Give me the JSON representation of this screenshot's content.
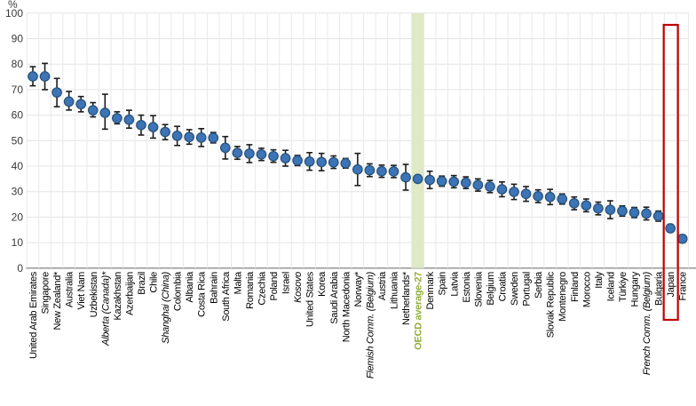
{
  "chart_data": {
    "type": "scatter",
    "title": "",
    "unit": "%",
    "ylim": [
      0,
      100
    ],
    "yticks": [
      0,
      10,
      20,
      30,
      40,
      50,
      60,
      70,
      80,
      90,
      100
    ],
    "grid": true,
    "legend": null,
    "marker": "circle-with-error-bars",
    "points": [
      {
        "label": "United Arab Emirates",
        "value": 75.2,
        "lo": 71.5,
        "hi": 79.0,
        "italic": false
      },
      {
        "label": "Singapore",
        "value": 75.2,
        "lo": 70.0,
        "hi": 80.3,
        "italic": false
      },
      {
        "label": "New Zealand*",
        "value": 68.9,
        "lo": 63.3,
        "hi": 74.4,
        "italic": false
      },
      {
        "label": "Australia",
        "value": 65.3,
        "lo": 62.0,
        "hi": 69.3,
        "italic": false
      },
      {
        "label": "Viet Nam",
        "value": 64.3,
        "lo": 61.3,
        "hi": 67.3,
        "italic": false
      },
      {
        "label": "Uzbekistan",
        "value": 61.9,
        "lo": 59.3,
        "hi": 64.9,
        "italic": false
      },
      {
        "label": "Alberta (Canada)*",
        "value": 60.9,
        "lo": 54.5,
        "hi": 68.2,
        "italic": true
      },
      {
        "label": "Kazakhstan",
        "value": 58.8,
        "lo": 56.6,
        "hi": 61.3,
        "italic": false
      },
      {
        "label": "Azerbaijan",
        "value": 58.2,
        "lo": 54.9,
        "hi": 61.9,
        "italic": false
      },
      {
        "label": "Brazil",
        "value": 56.1,
        "lo": 52.2,
        "hi": 60.0,
        "italic": false
      },
      {
        "label": "Chile",
        "value": 55.3,
        "lo": 51.0,
        "hi": 59.8,
        "italic": false
      },
      {
        "label": "Shanghai (China)",
        "value": 53.4,
        "lo": 50.4,
        "hi": 56.3,
        "italic": true
      },
      {
        "label": "Colombia",
        "value": 51.9,
        "lo": 48.1,
        "hi": 55.6,
        "italic": false
      },
      {
        "label": "Albania",
        "value": 51.4,
        "lo": 48.6,
        "hi": 54.3,
        "italic": false
      },
      {
        "label": "Costa Rica",
        "value": 51.2,
        "lo": 47.7,
        "hi": 54.7,
        "italic": false
      },
      {
        "label": "Bahrain",
        "value": 51.1,
        "lo": 49.1,
        "hi": 53.2,
        "italic": false
      },
      {
        "label": "South Africa",
        "value": 47.2,
        "lo": 42.8,
        "hi": 51.6,
        "italic": false
      },
      {
        "label": "Malta",
        "value": 45.2,
        "lo": 42.7,
        "hi": 47.7,
        "italic": false
      },
      {
        "label": "Romania",
        "value": 44.9,
        "lo": 41.4,
        "hi": 48.4,
        "italic": false
      },
      {
        "label": "Czechia",
        "value": 44.6,
        "lo": 42.2,
        "hi": 47.0,
        "italic": false
      },
      {
        "label": "Poland",
        "value": 43.9,
        "lo": 41.5,
        "hi": 46.4,
        "italic": false
      },
      {
        "label": "Israel",
        "value": 43.1,
        "lo": 40.0,
        "hi": 46.2,
        "italic": false
      },
      {
        "label": "Kosovo",
        "value": 42.2,
        "lo": 40.2,
        "hi": 44.2,
        "italic": true
      },
      {
        "label": "United States",
        "value": 41.8,
        "lo": 38.4,
        "hi": 45.3,
        "italic": false
      },
      {
        "label": "Korea",
        "value": 41.6,
        "lo": 38.2,
        "hi": 45.0,
        "italic": false
      },
      {
        "label": "Saudi Arabia",
        "value": 41.5,
        "lo": 39.1,
        "hi": 44.0,
        "italic": false
      },
      {
        "label": "North Macedonia",
        "value": 41.1,
        "lo": 39.2,
        "hi": 43.0,
        "italic": false
      },
      {
        "label": "Norway*",
        "value": 38.7,
        "lo": 32.4,
        "hi": 45.0,
        "italic": false
      },
      {
        "label": "Flemish Comm. (Belgium)",
        "value": 38.4,
        "lo": 35.9,
        "hi": 40.9,
        "italic": true
      },
      {
        "label": "Austria",
        "value": 38.0,
        "lo": 35.6,
        "hi": 40.4,
        "italic": false
      },
      {
        "label": "Lithuania",
        "value": 37.9,
        "lo": 35.5,
        "hi": 40.3,
        "italic": false
      },
      {
        "label": "Netherlands*",
        "value": 35.6,
        "lo": 30.6,
        "hi": 40.7,
        "italic": false
      },
      {
        "label": "OECD average-27",
        "value": 35.0,
        "lo": 35.0,
        "hi": 35.0,
        "italic": false,
        "oecd": true
      },
      {
        "label": "Denmark",
        "value": 34.6,
        "lo": 31.2,
        "hi": 38.0,
        "italic": false
      },
      {
        "label": "Spain",
        "value": 34.1,
        "lo": 32.1,
        "hi": 36.1,
        "italic": false
      },
      {
        "label": "Latvia",
        "value": 33.9,
        "lo": 31.5,
        "hi": 36.3,
        "italic": false
      },
      {
        "label": "Estonia",
        "value": 33.5,
        "lo": 31.2,
        "hi": 35.8,
        "italic": false
      },
      {
        "label": "Slovenia",
        "value": 32.6,
        "lo": 30.2,
        "hi": 35.0,
        "italic": false
      },
      {
        "label": "Belgium",
        "value": 32.0,
        "lo": 29.6,
        "hi": 34.4,
        "italic": false
      },
      {
        "label": "Croatia",
        "value": 30.9,
        "lo": 28.0,
        "hi": 33.8,
        "italic": false
      },
      {
        "label": "Sweden",
        "value": 29.9,
        "lo": 26.9,
        "hi": 32.9,
        "italic": false
      },
      {
        "label": "Portugal",
        "value": 29.1,
        "lo": 26.2,
        "hi": 32.0,
        "italic": false
      },
      {
        "label": "Serbia",
        "value": 28.2,
        "lo": 25.7,
        "hi": 30.7,
        "italic": false
      },
      {
        "label": "Slovak Republic",
        "value": 27.9,
        "lo": 24.9,
        "hi": 30.9,
        "italic": false
      },
      {
        "label": "Montenegro",
        "value": 27.1,
        "lo": 25.1,
        "hi": 29.1,
        "italic": false
      },
      {
        "label": "Finland",
        "value": 25.4,
        "lo": 22.9,
        "hi": 27.9,
        "italic": false
      },
      {
        "label": "Morocco",
        "value": 24.6,
        "lo": 22.1,
        "hi": 27.1,
        "italic": false
      },
      {
        "label": "Italy",
        "value": 23.4,
        "lo": 20.9,
        "hi": 25.9,
        "italic": false
      },
      {
        "label": "Iceland",
        "value": 22.9,
        "lo": 19.4,
        "hi": 26.4,
        "italic": false
      },
      {
        "label": "Türkiye",
        "value": 22.4,
        "lo": 20.4,
        "hi": 24.4,
        "italic": false
      },
      {
        "label": "Hungary",
        "value": 21.8,
        "lo": 19.8,
        "hi": 23.8,
        "italic": false
      },
      {
        "label": "French Comm. (Belgium)",
        "value": 21.4,
        "lo": 18.9,
        "hi": 23.9,
        "italic": true
      },
      {
        "label": "Bulgaria",
        "value": 20.4,
        "lo": 18.4,
        "hi": 22.4,
        "italic": false
      },
      {
        "label": "Japan",
        "value": 15.6,
        "lo": 14.1,
        "hi": 17.1,
        "italic": false,
        "boxed": true
      },
      {
        "label": "France",
        "value": 11.5,
        "lo": 10.0,
        "hi": 13.0,
        "italic": false
      }
    ],
    "highlight_band": {
      "on_label": "OECD average-27",
      "band_color": "#dfe9c6",
      "text_color": "#8faf3c"
    },
    "highlight_box": {
      "on_label": "Japan",
      "color": "#c00000"
    },
    "legend_position": "none"
  },
  "colors": {
    "marker_fill": "#3d74b5",
    "marker_edge": "#29537d",
    "error_bar": "#1c1c1c",
    "grid_h": "#e4e4e4",
    "grid_v": "#e9e9e9",
    "axis_line": "#8c8c8c",
    "tick_text": "#3a3a3a",
    "label_text": "#000000"
  }
}
